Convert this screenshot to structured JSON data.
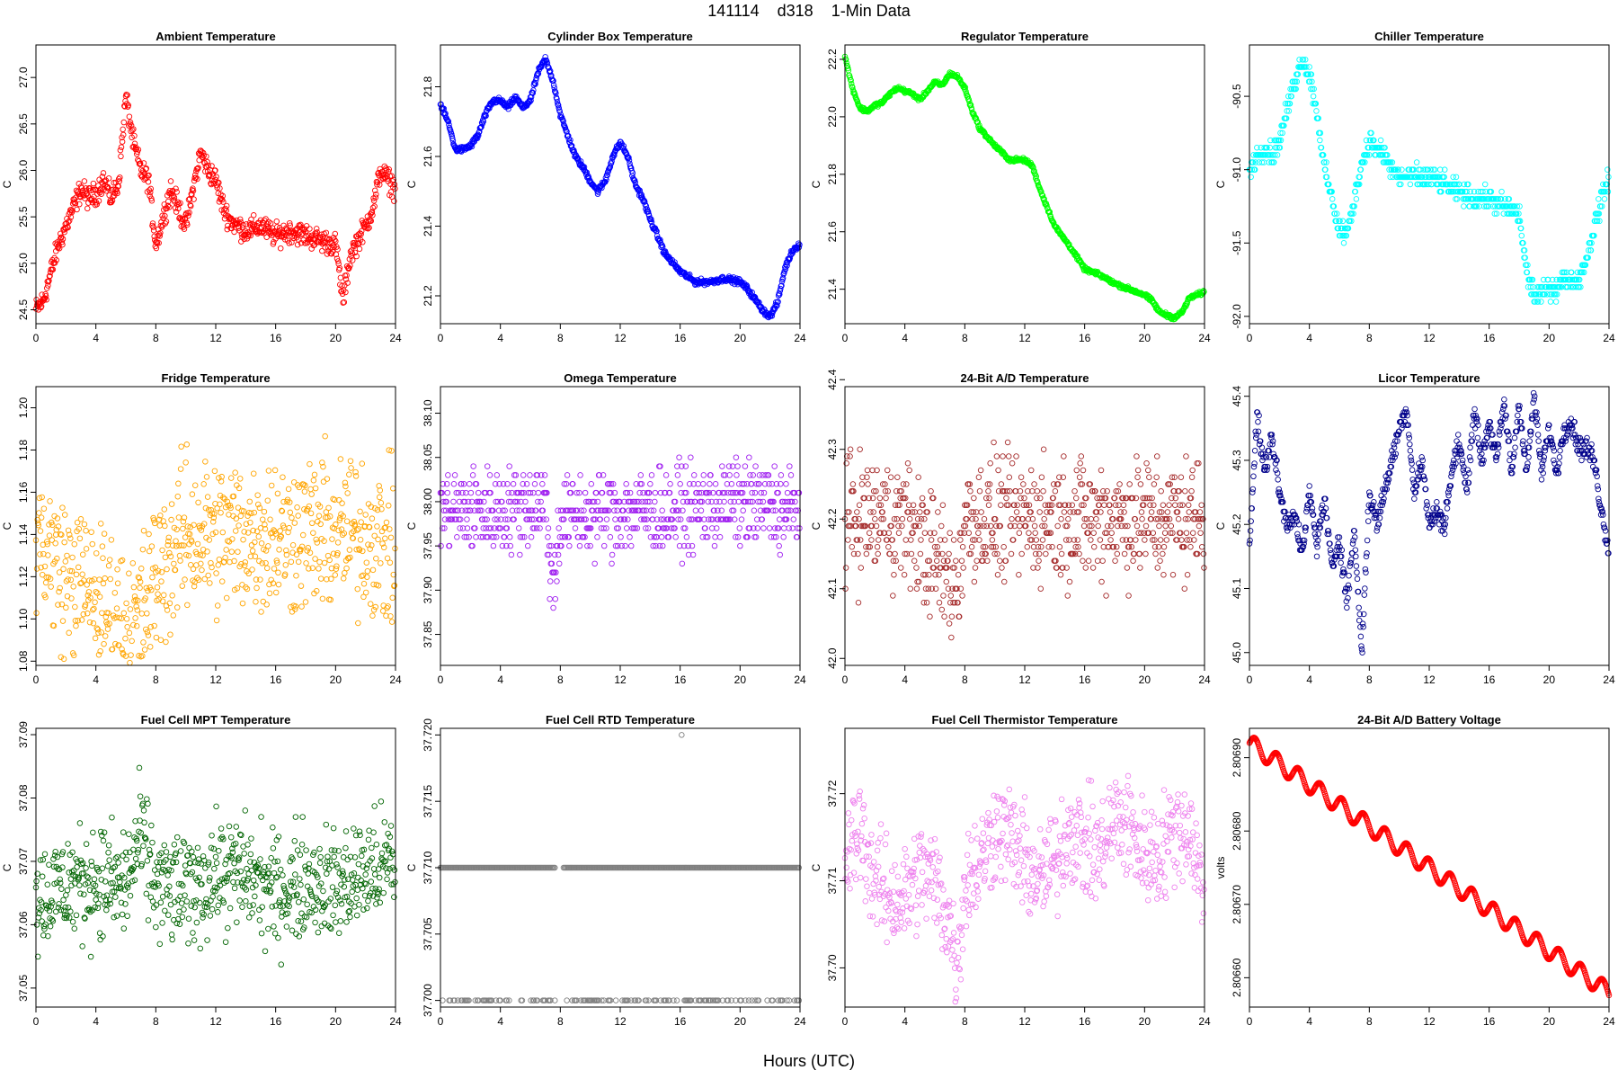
{
  "page": {
    "title": "141114    d318    1-Min Data",
    "xlabel": "Hours (UTC)"
  },
  "chart_data": [
    {
      "type": "scatter",
      "title": "Ambient Temperature",
      "ylabel": "C",
      "color": "#ff0000",
      "xlim": [
        0,
        24
      ],
      "ylim": [
        24.35,
        27.35
      ],
      "xticks": [
        0,
        4,
        8,
        12,
        16,
        20,
        24
      ],
      "xtick_labels": [
        "0",
        "4",
        "8",
        "12",
        "16",
        "20",
        "24"
      ],
      "yticks": [
        24.5,
        25.0,
        25.5,
        26.0,
        26.5,
        27.0
      ],
      "ytick_labels": [
        "24.5",
        "25.0",
        "25.5",
        "26.0",
        "26.5",
        "27.0"
      ],
      "series": [
        {
          "x": [
            0,
            0.5,
            1,
            1.5,
            2,
            2.5,
            3,
            3.5,
            4,
            4.5,
            5,
            5.5,
            6,
            6.5,
            7,
            7.5,
            8,
            8.5,
            9,
            9.5,
            10,
            10.5,
            11,
            11.5,
            12,
            12.5,
            13,
            14,
            15,
            16,
            17,
            18,
            19,
            20,
            20.5,
            21,
            22,
            22.5,
            23,
            23.5,
            24
          ],
          "y": [
            24.5,
            24.6,
            24.9,
            25.2,
            25.4,
            25.6,
            25.8,
            25.7,
            25.75,
            25.9,
            25.7,
            25.85,
            26.8,
            26.3,
            26.0,
            25.9,
            25.2,
            25.5,
            25.8,
            25.6,
            25.4,
            25.8,
            26.2,
            26.0,
            25.9,
            25.6,
            25.45,
            25.35,
            25.4,
            25.3,
            25.35,
            25.3,
            25.25,
            25.2,
            24.6,
            25.1,
            25.4,
            25.6,
            26.0,
            25.9,
            25.8
          ],
          "spread": 0.18
        }
      ]
    },
    {
      "type": "scatter",
      "title": "Cylinder Box Temperature",
      "ylabel": "C",
      "color": "#0000ff",
      "xlim": [
        0,
        24
      ],
      "ylim": [
        21.12,
        21.92
      ],
      "xticks": [
        0,
        4,
        8,
        12,
        16,
        20,
        24
      ],
      "xtick_labels": [
        "0",
        "4",
        "8",
        "12",
        "16",
        "20",
        "24"
      ],
      "yticks": [
        21.2,
        21.4,
        21.6,
        21.8
      ],
      "ytick_labels": [
        "21.2",
        "21.4",
        "21.6",
        "21.8"
      ],
      "series": [
        {
          "x": [
            0,
            0.5,
            1,
            1.5,
            2,
            2.5,
            3,
            3.5,
            4,
            4.5,
            5,
            5.5,
            6,
            6.5,
            7,
            7.5,
            8,
            8.5,
            9,
            9.5,
            10,
            10.5,
            11,
            11.5,
            12,
            12.5,
            13,
            13.5,
            14,
            14.5,
            15,
            16,
            17,
            18,
            19,
            20,
            20.5,
            21,
            21.5,
            22,
            22.5,
            23,
            23.5,
            24
          ],
          "y": [
            21.75,
            21.7,
            21.62,
            21.62,
            21.63,
            21.66,
            21.72,
            21.76,
            21.76,
            21.74,
            21.77,
            21.74,
            21.76,
            21.84,
            21.88,
            21.82,
            21.72,
            21.66,
            21.6,
            21.57,
            21.53,
            21.5,
            21.53,
            21.6,
            21.64,
            21.6,
            21.52,
            21.48,
            21.42,
            21.37,
            21.32,
            21.27,
            21.24,
            21.24,
            21.25,
            21.24,
            21.22,
            21.19,
            21.16,
            21.14,
            21.18,
            21.28,
            21.33,
            21.35
          ],
          "spread": 0.012
        }
      ]
    },
    {
      "type": "scatter",
      "title": "Regulator Temperature",
      "ylabel": "C",
      "color": "#00ff00",
      "xlim": [
        0,
        24
      ],
      "ylim": [
        21.28,
        22.25
      ],
      "xticks": [
        0,
        4,
        8,
        12,
        16,
        20,
        24
      ],
      "xtick_labels": [
        "0",
        "4",
        "8",
        "12",
        "16",
        "20",
        "24"
      ],
      "yticks": [
        21.4,
        21.6,
        21.8,
        22.0,
        22.2
      ],
      "ytick_labels": [
        "21.4",
        "21.6",
        "21.8",
        "22.0",
        "22.2"
      ],
      "series": [
        {
          "x": [
            0,
            0.5,
            1,
            1.5,
            2,
            2.5,
            3,
            3.5,
            4,
            4.5,
            5,
            5.5,
            6,
            6.5,
            7,
            7.5,
            8,
            8.5,
            9,
            10,
            11,
            12,
            12.5,
            13,
            14,
            15,
            16,
            17,
            18,
            19,
            20,
            20.5,
            21,
            21.5,
            22,
            22.5,
            23,
            23.5,
            24
          ],
          "y": [
            22.21,
            22.1,
            22.03,
            22.02,
            22.04,
            22.05,
            22.08,
            22.1,
            22.09,
            22.08,
            22.06,
            22.09,
            22.12,
            22.11,
            22.15,
            22.14,
            22.1,
            22.02,
            21.96,
            21.9,
            21.85,
            21.85,
            21.83,
            21.75,
            21.62,
            21.55,
            21.47,
            21.45,
            21.42,
            21.4,
            21.38,
            21.36,
            21.32,
            21.31,
            21.3,
            21.32,
            21.37,
            21.38,
            21.39
          ],
          "spread": 0.01
        }
      ]
    },
    {
      "type": "scatter",
      "title": "Chiller Temperature",
      "ylabel": "C",
      "color": "#00ffff",
      "xlim": [
        0,
        24
      ],
      "ylim": [
        -92.05,
        -90.15
      ],
      "xticks": [
        0,
        4,
        8,
        12,
        16,
        20,
        24
      ],
      "xtick_labels": [
        "0",
        "4",
        "8",
        "12",
        "16",
        "20",
        "24"
      ],
      "yticks": [
        -92.0,
        -91.5,
        -91.0,
        -90.5
      ],
      "ytick_labels": [
        "-92.0",
        "-91.5",
        "-91.0",
        "-90.5"
      ],
      "series": [
        {
          "x": [
            0,
            0.5,
            1,
            1.5,
            2,
            2.5,
            3,
            3.5,
            4,
            4.5,
            5,
            5.5,
            6,
            6.5,
            7,
            7.5,
            8,
            8.5,
            9,
            9.5,
            10,
            11,
            12,
            13,
            14,
            15,
            16,
            17,
            18,
            18.5,
            19,
            19.5,
            20,
            20.5,
            21,
            22,
            22.5,
            23,
            23.5,
            24
          ],
          "y": [
            -91.0,
            -90.9,
            -90.85,
            -90.9,
            -90.8,
            -90.6,
            -90.4,
            -90.25,
            -90.35,
            -90.6,
            -91.0,
            -91.2,
            -91.4,
            -91.45,
            -91.2,
            -90.95,
            -90.8,
            -90.85,
            -90.9,
            -91.0,
            -91.05,
            -91.05,
            -91.05,
            -91.1,
            -91.15,
            -91.2,
            -91.2,
            -91.25,
            -91.3,
            -91.7,
            -91.85,
            -91.85,
            -91.8,
            -91.8,
            -91.75,
            -91.75,
            -91.6,
            -91.4,
            -91.2,
            -91.05
          ],
          "spread": 0.1,
          "quantum": 0.05
        }
      ]
    },
    {
      "type": "scatter",
      "title": "Fridge Temperature",
      "ylabel": "C",
      "color": "#ffa500",
      "xlim": [
        0,
        24
      ],
      "ylim": [
        1.078,
        1.21
      ],
      "xticks": [
        0,
        4,
        8,
        12,
        16,
        20,
        24
      ],
      "xtick_labels": [
        "0",
        "4",
        "8",
        "12",
        "16",
        "20",
        "24"
      ],
      "yticks": [
        1.08,
        1.1,
        1.12,
        1.14,
        1.16,
        1.18,
        1.2
      ],
      "ytick_labels": [
        "1.08",
        "1.10",
        "1.12",
        "1.14",
        "1.16",
        "1.18",
        "1.20"
      ],
      "series": [
        {
          "x": [
            0,
            2,
            4,
            6,
            7,
            8,
            10,
            12,
            14,
            16,
            18,
            20,
            22,
            24
          ],
          "y": [
            1.14,
            1.12,
            1.11,
            1.095,
            1.1,
            1.12,
            1.14,
            1.14,
            1.14,
            1.14,
            1.14,
            1.14,
            1.14,
            1.13
          ],
          "spread": 0.055
        }
      ]
    },
    {
      "type": "scatter",
      "title": "Omega Temperature",
      "ylabel": "C",
      "color": "#a020f0",
      "xlim": [
        0,
        24
      ],
      "ylim": [
        37.815,
        38.13
      ],
      "xticks": [
        0,
        4,
        8,
        12,
        16,
        20,
        24
      ],
      "xtick_labels": [
        "0",
        "4",
        "8",
        "12",
        "16",
        "20",
        "24"
      ],
      "yticks": [
        37.85,
        37.9,
        37.95,
        38.0,
        38.05,
        38.1
      ],
      "ytick_labels": [
        "37.85",
        "37.90",
        "37.95",
        "38.00",
        "38.05",
        "38.10"
      ],
      "series": [
        {
          "x": [
            0,
            4,
            7,
            7.5,
            8,
            12,
            16,
            20,
            24
          ],
          "y": [
            37.99,
            37.99,
            38.0,
            37.9,
            37.98,
            37.99,
            37.99,
            38.0,
            37.99
          ],
          "spread": 0.07,
          "quantum": 0.01
        }
      ]
    },
    {
      "type": "scatter",
      "title": "24-Bit A/D Temperature",
      "ylabel": "C",
      "color": "#a52a2a",
      "xlim": [
        0,
        24
      ],
      "ylim": [
        41.99,
        42.39
      ],
      "xticks": [
        0,
        4,
        8,
        12,
        16,
        20,
        24
      ],
      "xtick_labels": [
        "0",
        "4",
        "8",
        "12",
        "16",
        "20",
        "24"
      ],
      "yticks": [
        42.0,
        42.1,
        42.2,
        42.3,
        42.4
      ],
      "ytick_labels": [
        "42.0",
        "42.1",
        "42.2",
        "42.3",
        "42.4"
      ],
      "series": [
        {
          "x": [
            0,
            4,
            7.5,
            8,
            12,
            16,
            20,
            24
          ],
          "y": [
            42.2,
            42.2,
            42.1,
            42.2,
            42.2,
            42.2,
            42.2,
            42.2
          ],
          "spread": 0.13,
          "quantum": 0.01
        }
      ]
    },
    {
      "type": "scatter",
      "title": "Licor Temperature",
      "ylabel": "C",
      "color": "#00008b",
      "xlim": [
        0,
        24
      ],
      "ylim": [
        44.98,
        45.415
      ],
      "xticks": [
        0,
        4,
        8,
        12,
        16,
        20,
        24
      ],
      "xtick_labels": [
        "0",
        "4",
        "8",
        "12",
        "16",
        "20",
        "24"
      ],
      "yticks": [
        45.0,
        45.1,
        45.2,
        45.3,
        45.4
      ],
      "ytick_labels": [
        "45.0",
        "45.1",
        "45.2",
        "45.3",
        "45.4"
      ],
      "series": [
        {
          "x": [
            0,
            0.5,
            1,
            1.5,
            2,
            2.5,
            3,
            3.5,
            4,
            4.5,
            5,
            5.5,
            6,
            6.5,
            7,
            7.5,
            8,
            8.5,
            9,
            9.5,
            10,
            10.5,
            11,
            11.5,
            12,
            12.5,
            13,
            13.5,
            14,
            14.5,
            15,
            15.5,
            16,
            16.5,
            17,
            17.5,
            18,
            18.5,
            19,
            19.5,
            20,
            20.5,
            21,
            21.5,
            22,
            22.5,
            23,
            23.5,
            24
          ],
          "y": [
            45.17,
            45.37,
            45.28,
            45.34,
            45.25,
            45.2,
            45.22,
            45.15,
            45.25,
            45.17,
            45.24,
            45.13,
            45.18,
            45.08,
            45.19,
            45.0,
            45.25,
            45.2,
            45.25,
            45.3,
            45.35,
            45.38,
            45.25,
            45.3,
            45.2,
            45.22,
            45.2,
            45.28,
            45.33,
            45.25,
            45.38,
            45.3,
            45.36,
            45.3,
            45.39,
            45.28,
            45.39,
            45.28,
            45.4,
            45.28,
            45.35,
            45.28,
            45.35,
            45.36,
            45.32,
            45.32,
            45.3,
            45.22,
            45.16
          ],
          "spread": 0.025,
          "quantum": 0.005
        }
      ]
    },
    {
      "type": "scatter",
      "title": "Fuel Cell MPT Temperature",
      "ylabel": "C",
      "color": "#006400",
      "xlim": [
        0,
        24
      ],
      "ylim": [
        37.047,
        37.091
      ],
      "xticks": [
        0,
        4,
        8,
        12,
        16,
        20,
        24
      ],
      "xtick_labels": [
        "0",
        "4",
        "8",
        "12",
        "16",
        "20",
        "24"
      ],
      "yticks": [
        37.05,
        37.06,
        37.07,
        37.08,
        37.09
      ],
      "ytick_labels": [
        "37.05",
        "37.06",
        "37.07",
        "37.08",
        "37.09"
      ],
      "series": [
        {
          "x": [
            0,
            2,
            4,
            6,
            7,
            8,
            10,
            12,
            14,
            16,
            18,
            20,
            22,
            24
          ],
          "y": [
            37.064,
            37.066,
            37.067,
            37.066,
            37.074,
            37.066,
            37.065,
            37.068,
            37.068,
            37.065,
            37.067,
            37.066,
            37.068,
            37.07
          ],
          "spread": 0.013
        }
      ]
    },
    {
      "type": "scatter",
      "title": "Fuel Cell RTD Temperature",
      "ylabel": "C",
      "color": "#808080",
      "xlim": [
        0,
        24
      ],
      "ylim": [
        37.6995,
        37.7205
      ],
      "xticks": [
        0,
        4,
        8,
        12,
        16,
        20,
        24
      ],
      "xtick_labels": [
        "0",
        "4",
        "8",
        "12",
        "16",
        "20",
        "24"
      ],
      "yticks": [
        37.7,
        37.705,
        37.71,
        37.715,
        37.72
      ],
      "ytick_labels": [
        "37.700",
        "37.705",
        "37.710",
        "37.715",
        "37.720"
      ],
      "series": [
        {
          "levels": [
            37.7,
            37.71
          ],
          "outlier": [
            16.1,
            37.72
          ]
        }
      ]
    },
    {
      "type": "scatter",
      "title": "Fuel Cell Thermistor Temperature",
      "ylabel": "C",
      "color": "#ee82ee",
      "xlim": [
        0,
        24
      ],
      "ylim": [
        37.6955,
        37.7275
      ],
      "xticks": [
        0,
        4,
        8,
        12,
        16,
        20,
        24
      ],
      "xtick_labels": [
        "0",
        "4",
        "8",
        "12",
        "16",
        "20",
        "24"
      ],
      "yticks": [
        37.7,
        37.71,
        37.72
      ],
      "ytick_labels": [
        "37.70",
        "37.71",
        "37.72"
      ],
      "series": [
        {
          "x": [
            0,
            1,
            2,
            3,
            4,
            5,
            6,
            7,
            7.5,
            8,
            9,
            10,
            11,
            12,
            13,
            14,
            15,
            16,
            17,
            18,
            19,
            20,
            21,
            22,
            23,
            24
          ],
          "y": [
            37.712,
            37.716,
            37.71,
            37.708,
            37.708,
            37.711,
            37.71,
            37.705,
            37.7,
            37.71,
            37.712,
            37.716,
            37.715,
            37.712,
            37.71,
            37.712,
            37.716,
            37.714,
            37.713,
            37.717,
            37.716,
            37.713,
            37.713,
            37.716,
            37.716,
            37.708
          ],
          "spread": 0.009
        }
      ]
    },
    {
      "type": "scatter",
      "title": "24-Bit A/D Battery Voltage",
      "ylabel": "volts",
      "color": "#ff0000",
      "xlim": [
        0,
        24
      ],
      "ylim": [
        2.80656,
        2.80694
      ],
      "xticks": [
        0,
        4,
        8,
        12,
        16,
        20,
        24
      ],
      "xtick_labels": [
        "0",
        "4",
        "8",
        "12",
        "16",
        "20",
        "24"
      ],
      "yticks": [
        2.8066,
        2.8067,
        2.8068,
        2.8069
      ],
      "ytick_labels": [
        "2.80660",
        "2.80670",
        "2.80680",
        "2.80690"
      ],
      "series": [
        {
          "x": [
            0,
            24
          ],
          "y": [
            2.80692,
            2.80658
          ],
          "wave_amp": 1.2e-05,
          "wave_period": 1.45
        }
      ]
    }
  ]
}
